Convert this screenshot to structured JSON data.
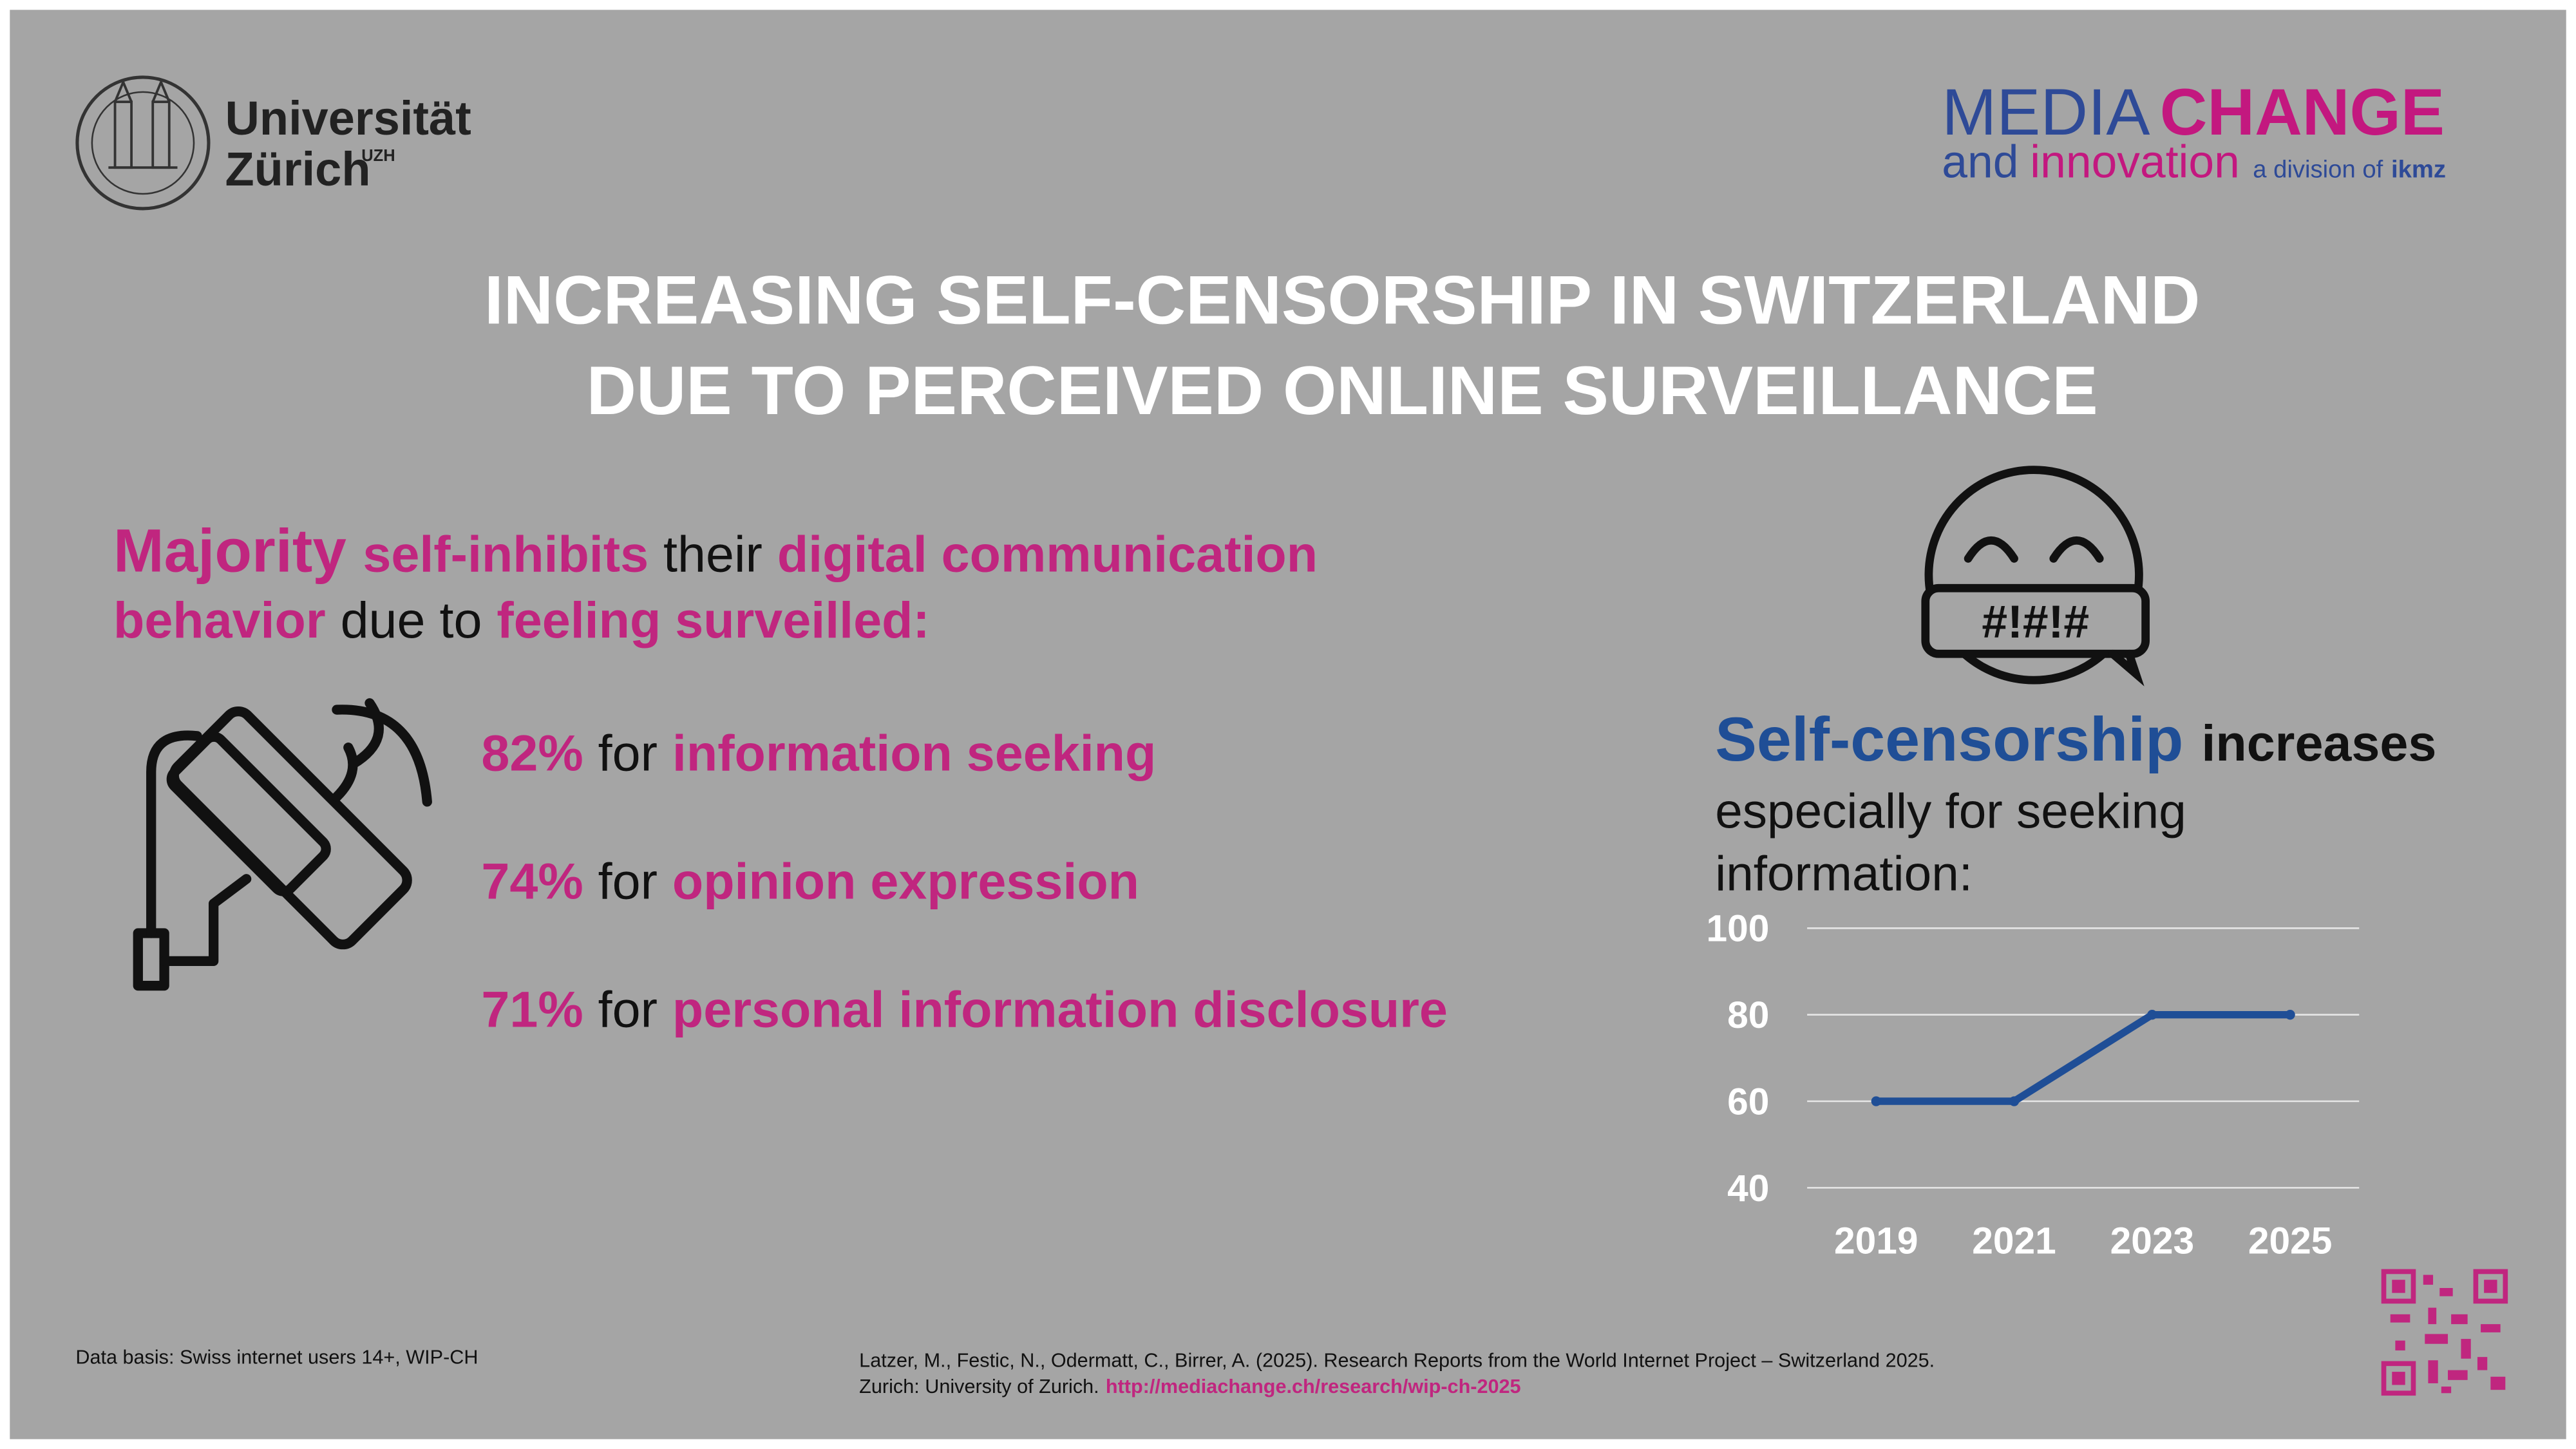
{
  "logos": {
    "uni_line1": "Universität",
    "uni_line2": "Zürich",
    "uni_sup": "UZH",
    "media": "MEDIA",
    "change": "CHANGE",
    "and": "and",
    "innovation": "innovation",
    "division": "a division of",
    "ikmz": "ikmz"
  },
  "title": [
    "INCREASING SELF-CENSORSHIP IN SWITZERLAND",
    "DUE TO PERCEIVED ONLINE SURVEILLANCE"
  ],
  "headline": [
    [
      "Majority",
      "self-inhibits",
      "their",
      "digital communication"
    ],
    [
      "behavior",
      "due to",
      "feeling surveilled:"
    ]
  ],
  "stats": [
    {
      "percent": "82%",
      "connector": "for",
      "label": "information seeking"
    },
    {
      "percent": "74%",
      "connector": "for",
      "label": "opinion expression"
    },
    {
      "percent": "71%",
      "connector": "for",
      "label": "personal information disclosure"
    }
  ],
  "face_icon_text": "#!#!#",
  "right_heading": {
    "emphasis": "Self-censorship",
    "verb": "increases",
    "line2": "especially for seeking",
    "line3": "information:"
  },
  "chart_data": {
    "type": "line",
    "categories": [
      "2019",
      "2021",
      "2023",
      "2025"
    ],
    "values": [
      60,
      60,
      80,
      80
    ],
    "color": "#1f4e96",
    "ylim": [
      40,
      100
    ],
    "yticks": [
      40,
      60,
      80,
      100
    ],
    "grid": true
  },
  "footer": {
    "data_basis": "Data basis: Swiss internet users 14+, WIP-CH",
    "citation_line1": "Latzer, M., Festic, N., Odermatt, C., Birrer, A. (2025). Research Reports from the World Internet Project – Switzerland 2025.",
    "citation_line2": "Zurich: University of Zurich.",
    "link": "http://mediachange.ch/research/wip-ch-2025"
  }
}
